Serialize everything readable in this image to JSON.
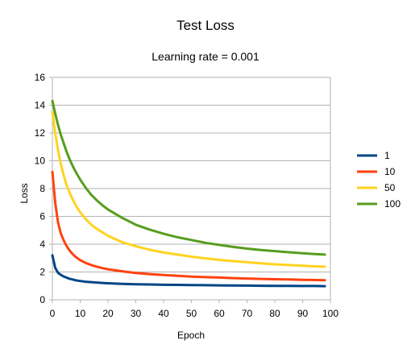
{
  "chart_data": {
    "type": "line",
    "title": "Test Loss",
    "subtitle": "Learning rate = 0.001",
    "xlabel": "Epoch",
    "ylabel": "Loss",
    "xlim": [
      0,
      100
    ],
    "ylim": [
      0,
      16
    ],
    "x_ticks": [
      0,
      10,
      20,
      30,
      40,
      50,
      60,
      70,
      80,
      90,
      100
    ],
    "y_ticks": [
      0,
      2,
      4,
      6,
      8,
      10,
      12,
      14,
      16
    ],
    "grid": "horizontal",
    "legend_position": "right",
    "x": [
      0,
      1,
      2,
      3,
      4,
      5,
      6,
      7,
      8,
      9,
      10,
      12,
      14,
      16,
      18,
      20,
      25,
      30,
      35,
      40,
      45,
      50,
      55,
      60,
      65,
      70,
      75,
      80,
      85,
      90,
      95,
      98
    ],
    "series": [
      {
        "name": "1",
        "color": "#004586",
        "values": [
          3.2,
          2.3,
          1.95,
          1.8,
          1.68,
          1.6,
          1.52,
          1.47,
          1.42,
          1.38,
          1.35,
          1.3,
          1.27,
          1.24,
          1.21,
          1.19,
          1.15,
          1.12,
          1.1,
          1.08,
          1.07,
          1.06,
          1.05,
          1.04,
          1.03,
          1.02,
          1.01,
          1.0,
          1.0,
          0.99,
          0.99,
          0.98
        ]
      },
      {
        "name": "10",
        "color": "#FF420E",
        "values": [
          9.2,
          7.0,
          5.6,
          4.8,
          4.3,
          3.9,
          3.6,
          3.35,
          3.15,
          3.0,
          2.85,
          2.65,
          2.5,
          2.38,
          2.28,
          2.2,
          2.05,
          1.93,
          1.85,
          1.78,
          1.72,
          1.67,
          1.63,
          1.6,
          1.56,
          1.53,
          1.5,
          1.48,
          1.46,
          1.44,
          1.42,
          1.41
        ]
      },
      {
        "name": "50",
        "color": "#FFD320",
        "values": [
          13.5,
          12.0,
          10.8,
          9.8,
          9.0,
          8.3,
          7.8,
          7.35,
          6.95,
          6.6,
          6.3,
          5.8,
          5.4,
          5.1,
          4.85,
          4.6,
          4.15,
          3.85,
          3.6,
          3.4,
          3.25,
          3.1,
          2.98,
          2.87,
          2.78,
          2.7,
          2.62,
          2.55,
          2.5,
          2.45,
          2.4,
          2.38
        ]
      },
      {
        "name": "100",
        "color": "#579D1C",
        "values": [
          14.3,
          13.4,
          12.6,
          11.9,
          11.3,
          10.7,
          10.2,
          9.75,
          9.35,
          9.0,
          8.65,
          8.05,
          7.55,
          7.15,
          6.8,
          6.5,
          5.9,
          5.4,
          5.05,
          4.75,
          4.5,
          4.3,
          4.1,
          3.95,
          3.8,
          3.68,
          3.58,
          3.5,
          3.42,
          3.35,
          3.28,
          3.25
        ]
      }
    ]
  }
}
